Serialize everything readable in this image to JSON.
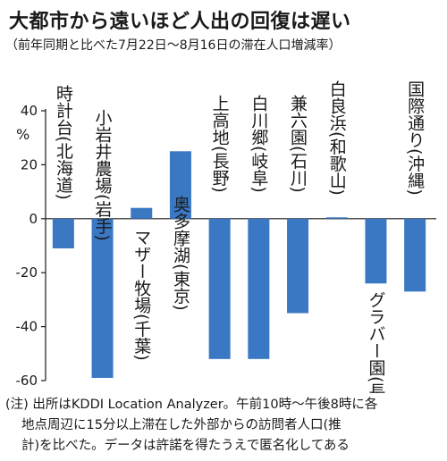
{
  "chart_data": {
    "type": "bar",
    "title": "大都市から遠いほど人出の回復は遅い",
    "subtitle": "（前年同期と比べた7月22日〜8月16日の滞在人口増減率）",
    "ylabel": "%",
    "ylim": [
      -60,
      40
    ],
    "yticks": [
      40,
      20,
      0,
      -20,
      -40,
      -60
    ],
    "categories": [
      {
        "name": "時計台",
        "region": "北海道"
      },
      {
        "name": "小岩井農場",
        "region": "岩手"
      },
      {
        "name": "マザー牧場",
        "region": "千葉"
      },
      {
        "name": "奥多摩湖",
        "region": "東京"
      },
      {
        "name": "上高地",
        "region": "長野"
      },
      {
        "name": "白川郷",
        "region": "岐阜"
      },
      {
        "name": "兼六園",
        "region": "石川"
      },
      {
        "name": "白良浜",
        "region": "和歌山"
      },
      {
        "name": "グラバー園",
        "region": "長崎"
      },
      {
        "name": "国際通り",
        "region": "沖縄"
      }
    ],
    "values": [
      -11,
      -59,
      4,
      25,
      -52,
      -52,
      -35,
      0.5,
      -24,
      -27
    ],
    "bar_color": "#3a78c4"
  },
  "note": [
    "(注) 出所はKDDI Location Analyzer。午前10時〜午後8時に各",
    "地点周辺に15分以上滞在した外部からの訪問者人口(推",
    "計)を比べた。データは許諾を得たうえで匿名化してある"
  ]
}
